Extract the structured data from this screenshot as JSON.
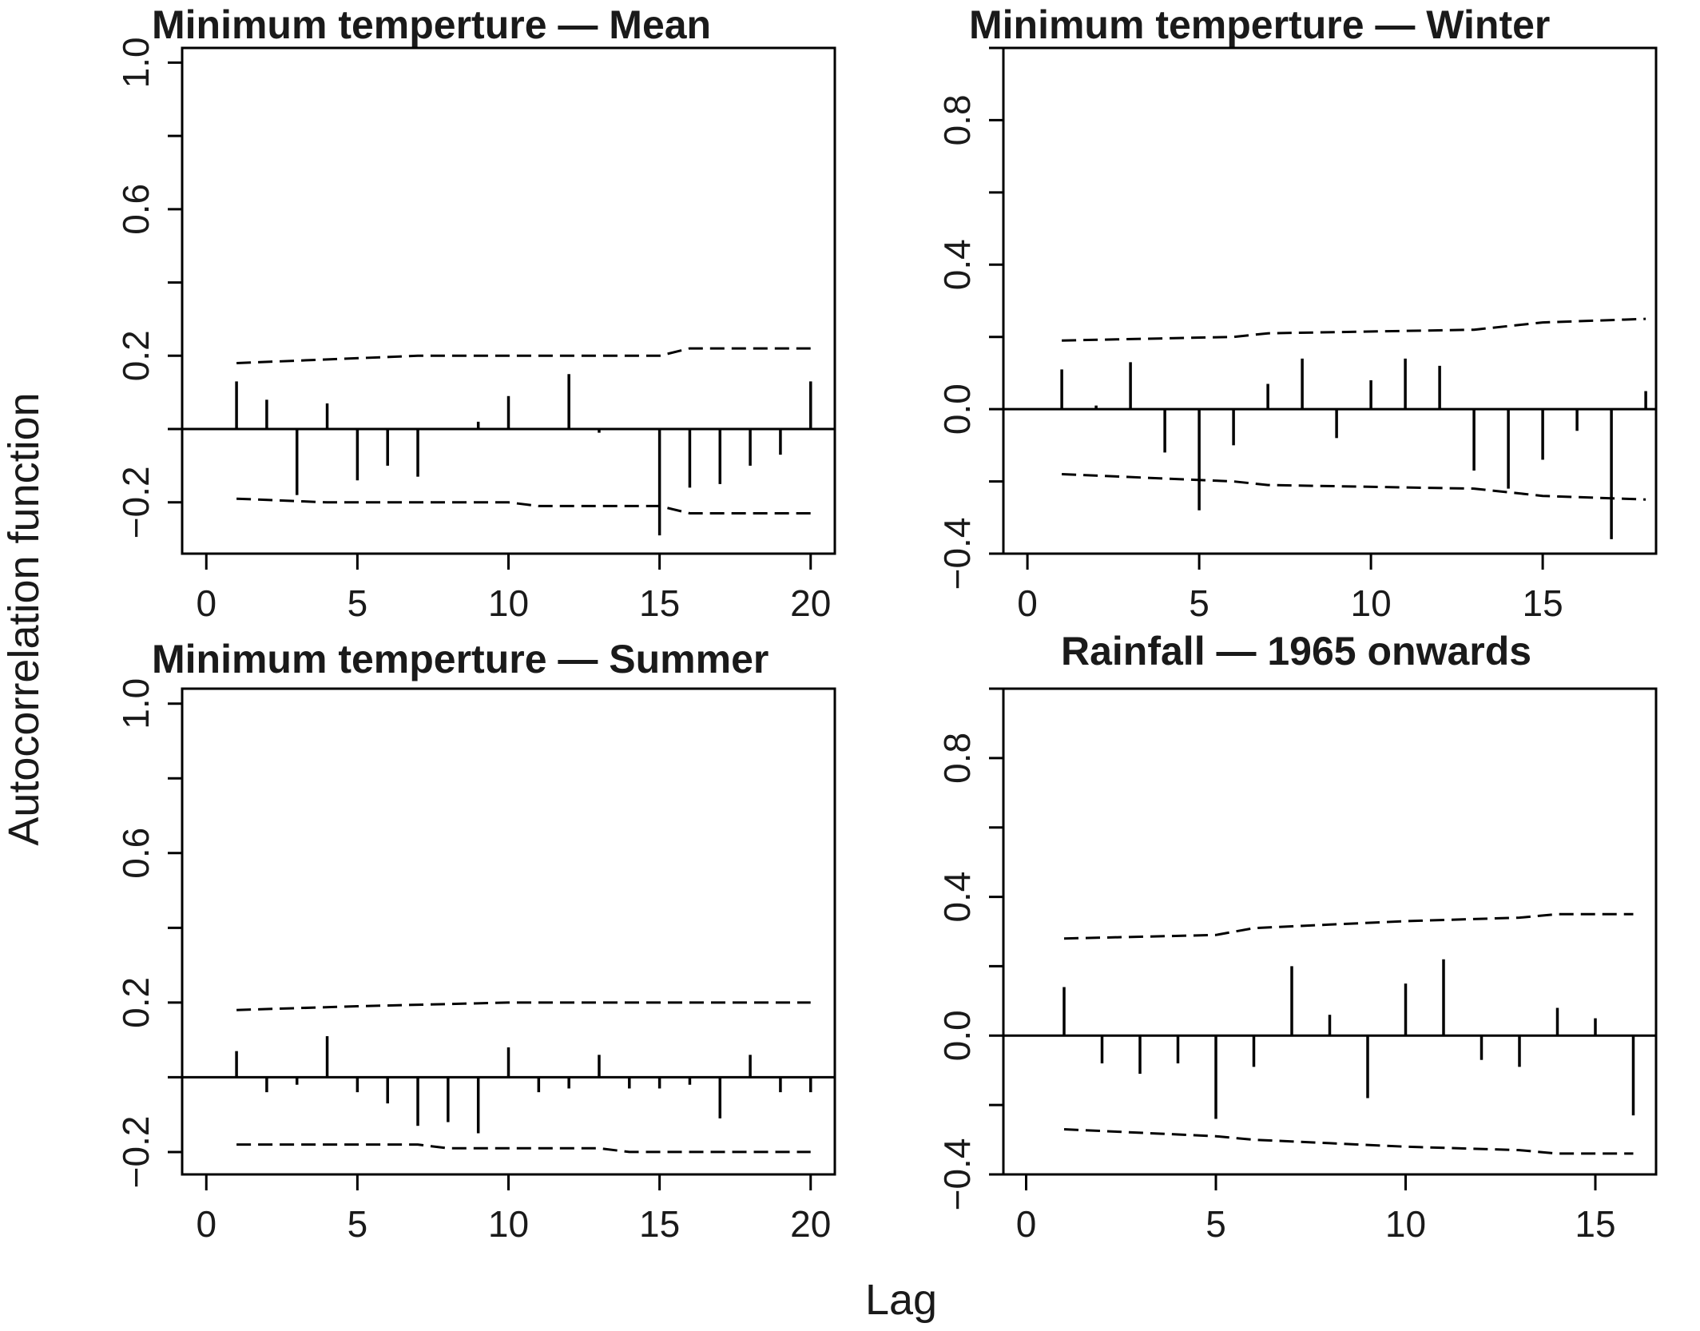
{
  "figure": {
    "xlabel": "Lag",
    "ylabel": "Autocorrelation function"
  },
  "chart_data": [
    {
      "type": "bar",
      "title": "Minimum temperture — Mean",
      "xlabel": "Lag",
      "ylabel": "Autocorrelation function",
      "xlim": [
        -0.8,
        20.8
      ],
      "ylim": [
        -0.34,
        1.04
      ],
      "yticks": [
        -0.2,
        0.2,
        0.6,
        1.0
      ],
      "ytick_labels": [
        "−0.2",
        "0.2",
        "0.6",
        "1.0"
      ],
      "xticks": [
        0,
        5,
        10,
        15,
        20
      ],
      "xtick_labels": [
        "0",
        "5",
        "10",
        "15",
        "20"
      ],
      "x": [
        1,
        2,
        3,
        4,
        5,
        6,
        7,
        8,
        9,
        10,
        11,
        12,
        13,
        14,
        15,
        16,
        17,
        18,
        19,
        20
      ],
      "values": [
        0.13,
        0.08,
        -0.18,
        0.07,
        -0.14,
        -0.1,
        -0.13,
        0.0,
        0.02,
        0.09,
        0.0,
        0.15,
        -0.01,
        0.0,
        -0.29,
        -0.16,
        -0.15,
        -0.1,
        -0.07,
        0.13
      ],
      "upper_bound": [
        [
          1,
          0.18
        ],
        [
          7,
          0.2
        ],
        [
          15,
          0.2
        ],
        [
          16,
          0.22
        ],
        [
          20,
          0.22
        ]
      ],
      "lower_bound": [
        [
          1,
          -0.19
        ],
        [
          4,
          -0.2
        ],
        [
          10,
          -0.2
        ],
        [
          11,
          -0.21
        ],
        [
          15,
          -0.21
        ],
        [
          16,
          -0.23
        ],
        [
          20,
          -0.23
        ]
      ]
    },
    {
      "type": "bar",
      "title": "Minimum temperture — Winter",
      "xlabel": "Lag",
      "ylabel": "Autocorrelation function",
      "xlim": [
        -0.7,
        18.3
      ],
      "ylim": [
        -0.4,
        1.0
      ],
      "yticks": [
        -0.4,
        0.0,
        0.4,
        0.8
      ],
      "ytick_labels": [
        "−0.4",
        "0.0",
        "0.4",
        "0.8"
      ],
      "xticks": [
        0,
        5,
        10,
        15
      ],
      "xtick_labels": [
        "0",
        "5",
        "10",
        "15"
      ],
      "x": [
        1,
        2,
        3,
        4,
        5,
        6,
        7,
        8,
        9,
        10,
        11,
        12,
        13,
        14,
        15,
        16,
        17,
        18
      ],
      "values": [
        0.11,
        0.01,
        0.13,
        -0.12,
        -0.28,
        -0.1,
        0.07,
        0.14,
        -0.08,
        0.08,
        0.14,
        0.12,
        -0.17,
        -0.22,
        -0.14,
        -0.06,
        -0.36,
        0.05
      ],
      "upper_bound": [
        [
          1,
          0.19
        ],
        [
          6,
          0.2
        ],
        [
          7,
          0.21
        ],
        [
          13,
          0.22
        ],
        [
          15,
          0.24
        ],
        [
          18,
          0.25
        ]
      ],
      "lower_bound": [
        [
          1,
          -0.18
        ],
        [
          6,
          -0.2
        ],
        [
          7,
          -0.21
        ],
        [
          13,
          -0.22
        ],
        [
          15,
          -0.24
        ],
        [
          18,
          -0.25
        ]
      ]
    },
    {
      "type": "bar",
      "title": "Minimum temperture — Summer",
      "xlabel": "Lag",
      "ylabel": "Autocorrelation function",
      "xlim": [
        -0.8,
        20.8
      ],
      "ylim": [
        -0.26,
        1.04
      ],
      "yticks": [
        -0.2,
        0.2,
        0.6,
        1.0
      ],
      "ytick_labels": [
        "−0.2",
        "0.2",
        "0.6",
        "1.0"
      ],
      "xticks": [
        0,
        5,
        10,
        15,
        20
      ],
      "xtick_labels": [
        "0",
        "5",
        "10",
        "15",
        "20"
      ],
      "x": [
        1,
        2,
        3,
        4,
        5,
        6,
        7,
        8,
        9,
        10,
        11,
        12,
        13,
        14,
        15,
        16,
        17,
        18,
        19,
        20
      ],
      "values": [
        0.07,
        -0.04,
        -0.02,
        0.11,
        -0.04,
        -0.07,
        -0.13,
        -0.12,
        -0.15,
        0.08,
        -0.04,
        -0.03,
        0.06,
        -0.03,
        -0.03,
        -0.02,
        -0.11,
        0.06,
        -0.04,
        -0.04
      ],
      "upper_bound": [
        [
          1,
          0.18
        ],
        [
          5,
          0.19
        ],
        [
          10,
          0.2
        ],
        [
          20,
          0.2
        ]
      ],
      "lower_bound": [
        [
          1,
          -0.18
        ],
        [
          7,
          -0.18
        ],
        [
          8,
          -0.19
        ],
        [
          13,
          -0.19
        ],
        [
          14,
          -0.2
        ],
        [
          20,
          -0.2
        ]
      ]
    },
    {
      "type": "bar",
      "title": "Rainfall — 1965 onwards",
      "xlabel": "Lag",
      "ylabel": "Autocorrelation function",
      "xlim": [
        -0.6,
        16.6
      ],
      "ylim": [
        -0.4,
        1.0
      ],
      "yticks": [
        -0.4,
        0.0,
        0.4,
        0.8
      ],
      "ytick_labels": [
        "−0.4",
        "0.0",
        "0.4",
        "0.8"
      ],
      "xticks": [
        0,
        5,
        10,
        15
      ],
      "xtick_labels": [
        "0",
        "5",
        "10",
        "15"
      ],
      "x": [
        1,
        2,
        3,
        4,
        5,
        6,
        7,
        8,
        9,
        10,
        11,
        12,
        13,
        14,
        15,
        16
      ],
      "values": [
        0.14,
        -0.08,
        -0.11,
        -0.08,
        -0.24,
        -0.09,
        0.2,
        0.06,
        -0.18,
        0.15,
        0.22,
        -0.07,
        -0.09,
        0.08,
        0.05,
        -0.23
      ],
      "upper_bound": [
        [
          1,
          0.28
        ],
        [
          5,
          0.29
        ],
        [
          6,
          0.31
        ],
        [
          8,
          0.32
        ],
        [
          10,
          0.33
        ],
        [
          13,
          0.34
        ],
        [
          14,
          0.35
        ],
        [
          16,
          0.35
        ]
      ],
      "lower_bound": [
        [
          1,
          -0.27
        ],
        [
          5,
          -0.29
        ],
        [
          6,
          -0.3
        ],
        [
          8,
          -0.31
        ],
        [
          10,
          -0.32
        ],
        [
          13,
          -0.33
        ],
        [
          14,
          -0.34
        ],
        [
          16,
          -0.34
        ]
      ]
    }
  ]
}
